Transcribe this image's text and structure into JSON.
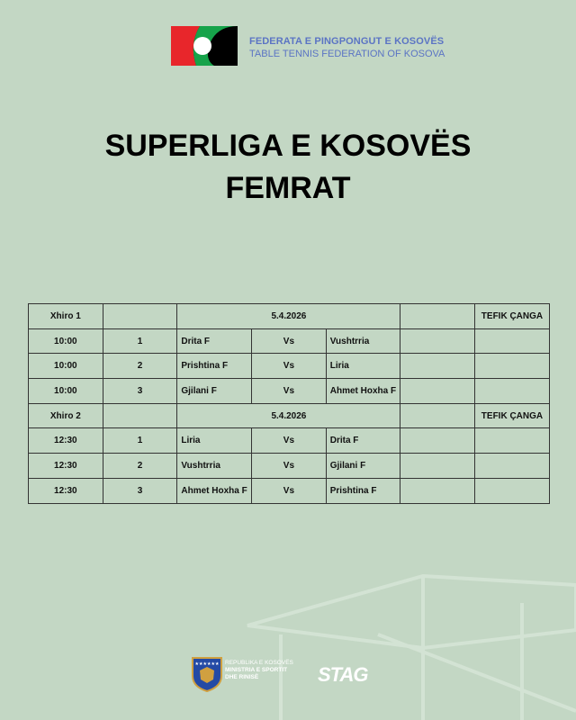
{
  "header": {
    "org_name": "FEDERATA E PINGPONGUT E KOSOVËS",
    "org_name_en": "TABLE TENNIS FEDERATION OF KOSOVA",
    "logo_colors": [
      "#e8262b",
      "#16a34a",
      "#000000",
      "#ffffff"
    ]
  },
  "title": {
    "line1": "SUPERLIGA E KOSOVËS",
    "line2": "FEMRAT"
  },
  "schedule": {
    "rounds": [
      {
        "label": "Xhiro 1",
        "date": "5.4.2026",
        "venue": "TEFIK ÇANGA",
        "matches": [
          {
            "time": "10:00",
            "no": "1",
            "home": "Drita F",
            "vs": "Vs",
            "away": "Vushtrria"
          },
          {
            "time": "10:00",
            "no": "2",
            "home": "Prishtina F",
            "vs": "Vs",
            "away": "Liria"
          },
          {
            "time": "10:00",
            "no": "3",
            "home": "Gjilani F",
            "vs": "Vs",
            "away": "Ahmet Hoxha F"
          }
        ]
      },
      {
        "label": "Xhiro 2",
        "date": "5.4.2026",
        "venue": "TEFIK ÇANGA",
        "matches": [
          {
            "time": "12:30",
            "no": "1",
            "home": "Liria",
            "vs": "Vs",
            "away": "Drita F"
          },
          {
            "time": "12:30",
            "no": "2",
            "home": "Vushtrria",
            "vs": "Vs",
            "away": "Gjilani F"
          },
          {
            "time": "12:30",
            "no": "3",
            "home": "Ahmet Hoxha F",
            "vs": "Vs",
            "away": "Prishtina F"
          }
        ]
      }
    ]
  },
  "footer": {
    "ministry_lines": [
      "REPUBLIKA E KOSOVËS",
      "MINISTRIA E SPORTIT",
      "DHE RINISË"
    ],
    "sponsor": "STAG"
  }
}
